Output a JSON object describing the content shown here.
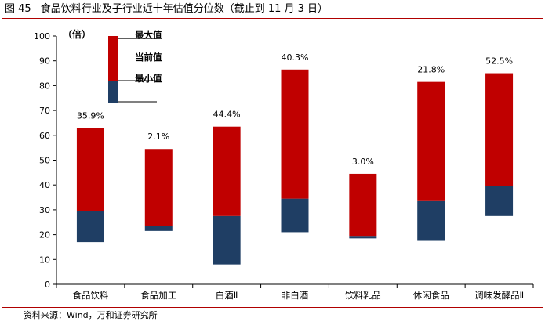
{
  "header": {
    "figure_number": "图 45",
    "title": "食品饮料行业及子行业近十年估值分位数（截止到 11 月 3 日）"
  },
  "footer": {
    "source": "资料来源：Wind，万和证券研究所"
  },
  "chart_data": {
    "type": "bar",
    "subtype": "floating-range",
    "unit_label": "（倍）",
    "categories": [
      "食品饮料",
      "食品加工",
      "白酒Ⅱ",
      "非白酒",
      "饮料乳品",
      "休闲食品",
      "调味发酵品Ⅱ"
    ],
    "series": [
      {
        "name": "最大值",
        "values": [
          63,
          54.5,
          63.5,
          86.5,
          44.5,
          81.5,
          85
        ],
        "color": "#c00000"
      },
      {
        "name": "当前值",
        "values": [
          29.5,
          23.5,
          27.5,
          34.5,
          19.5,
          33.5,
          39.5
        ],
        "color": "#c00000"
      },
      {
        "name": "最小值",
        "values": [
          17,
          21.5,
          8,
          21,
          18.5,
          17.5,
          27.5
        ],
        "color": "#1f3e64"
      }
    ],
    "data_labels": [
      "35.9%",
      "2.1%",
      "44.4%",
      "40.3%",
      "3.0%",
      "21.8%",
      "52.5%"
    ],
    "legend": {
      "items": [
        "最大值",
        "当前值",
        "最小值"
      ],
      "placement": "top-left"
    },
    "ylim": [
      0,
      100
    ],
    "yticks": [
      0,
      10,
      20,
      30,
      40,
      50,
      60,
      70,
      80,
      90,
      100
    ],
    "grid": false,
    "xlabel": "",
    "ylabel": ""
  }
}
